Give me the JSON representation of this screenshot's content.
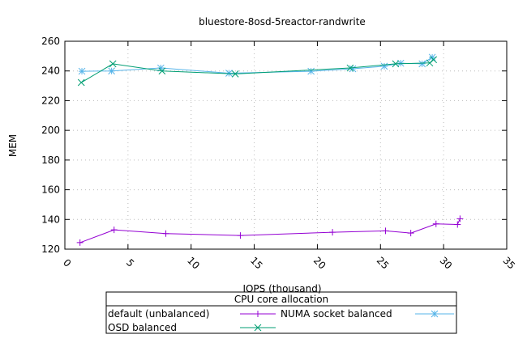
{
  "chart_data": {
    "type": "line",
    "title": "bluestore-8osd-5reactor-randwrite",
    "xlabel": "IOPS (thousand)",
    "ylabel": "MEM",
    "xlim": [
      0,
      35
    ],
    "ylim": [
      120,
      260
    ],
    "xticks": [
      0,
      5,
      10,
      15,
      20,
      25,
      30,
      35
    ],
    "yticks": [
      120,
      140,
      160,
      180,
      200,
      220,
      240,
      260
    ],
    "grid": true,
    "legend": {
      "title": "CPU core allocation",
      "placement": "bottom"
    },
    "series": [
      {
        "name": "default (unbalanced)",
        "color": "#9400d3",
        "marker": "plus",
        "x": [
          1.2,
          3.9,
          8.0,
          13.9,
          21.2,
          25.4,
          27.4,
          29.4,
          31.1,
          31.3
        ],
        "y": [
          124.4,
          133.0,
          130.5,
          129.2,
          131.4,
          132.3,
          130.8,
          137.0,
          136.6,
          140.5
        ]
      },
      {
        "name": "NUMA socket balanced",
        "color": "#56b4e9",
        "marker": "star",
        "x": [
          1.35,
          3.7,
          7.6,
          13.0,
          19.5,
          22.8,
          25.3,
          26.6,
          28.3,
          29.1
        ],
        "y": [
          239.8,
          240.0,
          242.0,
          238.5,
          239.8,
          241.5,
          243.2,
          245.2,
          244.8,
          249.2
        ]
      },
      {
        "name": "OSD balanced",
        "color": "#009e73",
        "marker": "x",
        "x": [
          1.3,
          3.8,
          7.7,
          13.5,
          22.6,
          26.2,
          28.9,
          29.2
        ],
        "y": [
          232.2,
          244.8,
          240.0,
          238.0,
          242.0,
          244.8,
          245.4,
          247.6
        ]
      }
    ]
  }
}
